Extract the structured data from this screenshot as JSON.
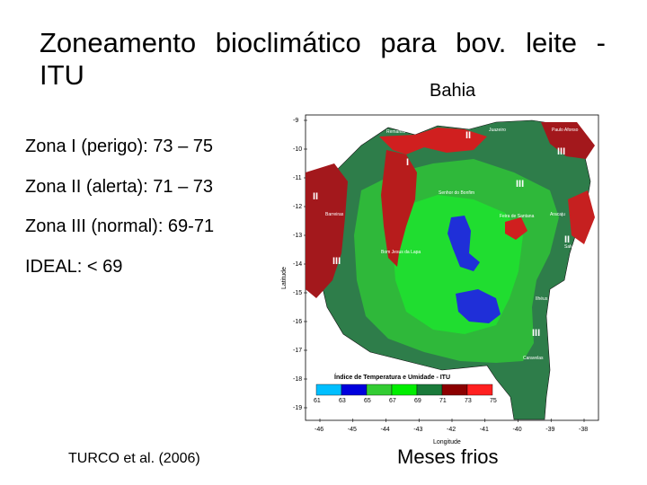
{
  "title": {
    "line1": "Zoneamento bioclimático para bov. leite -",
    "line2": "ITU"
  },
  "map_title": "Bahia",
  "zones": [
    {
      "text": "Zona I (perigo): 73 – 75"
    },
    {
      "text": "Zona II (alerta): 71 – 73"
    },
    {
      "text": "Zona III (normal): 69-71"
    },
    {
      "text": "IDEAL: < 69"
    }
  ],
  "citation": "TURCO et al. (2006)",
  "caption": "Meses frios",
  "map": {
    "y_axis_label": "Latitude",
    "x_axis_label": "Longitude",
    "y_ticks": [
      "-9",
      "-10",
      "-11",
      "-12",
      "-13",
      "-14",
      "-15",
      "-16",
      "-17",
      "-18",
      "-19"
    ],
    "x_ticks": [
      "-46",
      "-45",
      "-44",
      "-43",
      "-42",
      "-41",
      "-40",
      "-39",
      "-38"
    ],
    "legend_title": "Índice de Temperatura e Umidade - ITU",
    "legend_values": [
      "61",
      "63",
      "65",
      "67",
      "69",
      "71",
      "73",
      "75"
    ],
    "legend_colors": [
      "#00bfff",
      "#0000dd",
      "#33cc33",
      "#00ee00",
      "#1a7a3a",
      "#8b0000",
      "#ff2020"
    ],
    "zone_labels": [
      "I",
      "II",
      "II",
      "II",
      "III",
      "III",
      "III",
      "III",
      "II",
      "III"
    ],
    "cities": [
      "Remanso",
      "Juazeiro",
      "Paulo Afonso",
      "Senhor do Bonfim",
      "Barreiras",
      "Feira de Santana",
      "Aracaju",
      "Salvador",
      "Bom Jesus da Lapa",
      "Ilhéus",
      "Caravelas"
    ],
    "colors": {
      "red": "#d01f1f",
      "darkred": "#a3181c",
      "darkgreen": "#2e7d4a",
      "green": "#2fb83a",
      "lightgreen": "#20dd30",
      "blue": "#1f2fd8"
    }
  }
}
